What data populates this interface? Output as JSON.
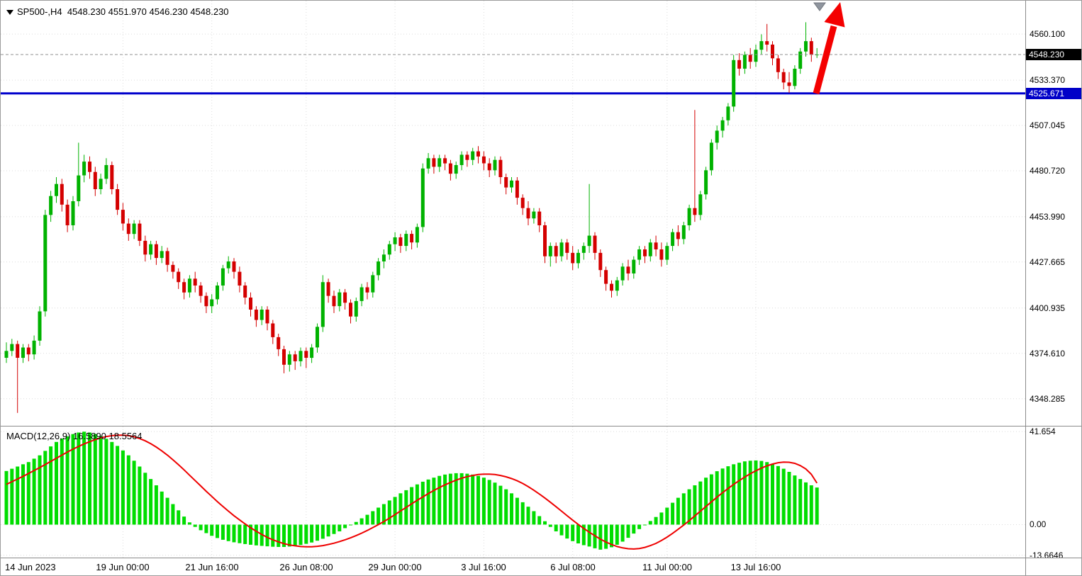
{
  "header": {
    "symbol_info": "SP500-,H4  4548.230 4551.970 4546.230 4548.230",
    "symbol": "SP500-",
    "timeframe": "H4"
  },
  "colors": {
    "up": "#00b200",
    "down": "#d40000",
    "macd_bar": "#00dd00",
    "signal": "#ee0000",
    "hline": "#0000cc",
    "arrow": "#f40000",
    "grid": "#dcdcdc",
    "price_line": "#909090",
    "marker": "#8f959e",
    "tag_black": "#000000",
    "tag_blue": "#0000c8"
  },
  "chart_data": {
    "type": "candlestick",
    "title": "SP500- H4 chart with MACD(12,26,9)",
    "price_ylim": [
      4332.5,
      4579.5
    ],
    "macd_ylim": [
      -14.75,
      43.9
    ],
    "last_candle": {
      "open": 4548.23,
      "high": 4551.97,
      "low": 4546.23,
      "close": 4548.23
    },
    "price_axis": {
      "ticks": [
        {
          "label": "4560.100",
          "value": 4560.1
        },
        {
          "label": "4533.370",
          "value": 4533.37
        },
        {
          "label": "4507.045",
          "value": 4507.045
        },
        {
          "label": "4480.720",
          "value": 4480.72
        },
        {
          "label": "4453.990",
          "value": 4453.99
        },
        {
          "label": "4427.665",
          "value": 4427.665
        },
        {
          "label": "4400.935",
          "value": 4400.935
        },
        {
          "label": "4374.610",
          "value": 4374.61
        },
        {
          "label": "4348.285",
          "value": 4348.285
        }
      ],
      "current": {
        "label": "4548.230",
        "value": 4548.23
      },
      "hline": {
        "label": "4525.671",
        "value": 4525.671
      }
    },
    "time_axis": [
      {
        "label": "14 Jun 2023",
        "index": 0,
        "grid": false
      },
      {
        "label": "19 Jun 00:00",
        "index": 21,
        "grid": true
      },
      {
        "label": "21 Jun 16:00",
        "index": 37,
        "grid": true
      },
      {
        "label": "26 Jun 08:00",
        "index": 54,
        "grid": true
      },
      {
        "label": "29 Jun 00:00",
        "index": 70,
        "grid": true
      },
      {
        "label": "3 Jul 16:00",
        "index": 86,
        "grid": true
      },
      {
        "label": "6 Jul 08:00",
        "index": 102,
        "grid": true
      },
      {
        "label": "11 Jul 00:00",
        "index": 119,
        "grid": true
      },
      {
        "label": "13 Jul 16:00",
        "index": 135,
        "grid": true
      }
    ],
    "candles": [
      [
        4372,
        4381,
        4369,
        4376
      ],
      [
        4376,
        4383,
        4373,
        4380
      ],
      [
        4380,
        4382,
        4340,
        4372
      ],
      [
        4372,
        4380,
        4369,
        4378
      ],
      [
        4378,
        4380,
        4370,
        4374
      ],
      [
        4374,
        4385,
        4371,
        4382
      ],
      [
        4382,
        4402,
        4379,
        4399
      ],
      [
        4399,
        4458,
        4396,
        4455
      ],
      [
        4455,
        4469,
        4451,
        4466
      ],
      [
        4466,
        4477,
        4462,
        4473
      ],
      [
        4473,
        4476,
        4457,
        4461
      ],
      [
        4461,
        4464,
        4445,
        4449
      ],
      [
        4449,
        4466,
        4446,
        4463
      ],
      [
        4463,
        4497,
        4460,
        4478
      ],
      [
        4478,
        4490,
        4474,
        4486
      ],
      [
        4486,
        4489,
        4476,
        4480
      ],
      [
        4480,
        4483,
        4466,
        4470
      ],
      [
        4470,
        4479,
        4467,
        4476
      ],
      [
        4476,
        4488,
        4473,
        4484
      ],
      [
        4484,
        4486,
        4467,
        4470
      ],
      [
        4470,
        4473,
        4455,
        4458
      ],
      [
        4458,
        4462,
        4446,
        4450
      ],
      [
        4450,
        4453,
        4440,
        4444
      ],
      [
        4444,
        4452,
        4441,
        4450
      ],
      [
        4450,
        4452,
        4437,
        4440
      ],
      [
        4440,
        4443,
        4428,
        4432
      ],
      [
        4432,
        4440,
        4429,
        4438
      ],
      [
        4438,
        4440,
        4426,
        4430
      ],
      [
        4430,
        4437,
        4427,
        4434
      ],
      [
        4434,
        4436,
        4422,
        4426
      ],
      [
        4426,
        4428,
        4418,
        4422
      ],
      [
        4422,
        4424,
        4412,
        4416
      ],
      [
        4416,
        4418,
        4406,
        4410
      ],
      [
        4410,
        4420,
        4407,
        4418
      ],
      [
        4418,
        4422,
        4410,
        4414
      ],
      [
        4414,
        4416,
        4404,
        4408
      ],
      [
        4408,
        4410,
        4398,
        4402
      ],
      [
        4402,
        4409,
        4398,
        4406
      ],
      [
        4406,
        4416,
        4403,
        4414
      ],
      [
        4414,
        4426,
        4411,
        4424
      ],
      [
        4424,
        4431,
        4421,
        4428
      ],
      [
        4428,
        4430,
        4418,
        4422
      ],
      [
        4422,
        4425,
        4410,
        4414
      ],
      [
        4414,
        4416,
        4403,
        4407
      ],
      [
        4407,
        4410,
        4396,
        4400
      ],
      [
        4400,
        4402,
        4390,
        4394
      ],
      [
        4394,
        4402,
        4391,
        4400
      ],
      [
        4400,
        4402,
        4388,
        4392
      ],
      [
        4392,
        4394,
        4380,
        4384
      ],
      [
        4384,
        4386,
        4373,
        4377
      ],
      [
        4377,
        4379,
        4363,
        4368
      ],
      [
        4368,
        4376,
        4364,
        4374
      ],
      [
        4374,
        4376,
        4365,
        4370
      ],
      [
        4370,
        4378,
        4367,
        4376
      ],
      [
        4376,
        4378,
        4366,
        4372
      ],
      [
        4372,
        4380,
        4369,
        4378
      ],
      [
        4378,
        4392,
        4375,
        4390
      ],
      [
        4390,
        4420,
        4387,
        4416
      ],
      [
        4416,
        4418,
        4404,
        4408
      ],
      [
        4408,
        4411,
        4398,
        4402
      ],
      [
        4402,
        4412,
        4399,
        4410
      ],
      [
        4410,
        4412,
        4400,
        4404
      ],
      [
        4404,
        4406,
        4392,
        4396
      ],
      [
        4396,
        4407,
        4393,
        4405
      ],
      [
        4405,
        4415,
        4402,
        4413
      ],
      [
        4413,
        4416,
        4406,
        4410
      ],
      [
        4410,
        4422,
        4407,
        4420
      ],
      [
        4420,
        4430,
        4417,
        4428
      ],
      [
        4428,
        4435,
        4424,
        4432
      ],
      [
        4432,
        4440,
        4429,
        4438
      ],
      [
        4438,
        4445,
        4434,
        4442
      ],
      [
        4442,
        4444,
        4433,
        4437
      ],
      [
        4437,
        4446,
        4434,
        4444
      ],
      [
        4444,
        4446,
        4435,
        4439
      ],
      [
        4439,
        4450,
        4436,
        4448
      ],
      [
        4448,
        4485,
        4445,
        4482
      ],
      [
        4482,
        4491,
        4479,
        4488
      ],
      [
        4488,
        4490,
        4479,
        4483
      ],
      [
        4483,
        4490,
        4480,
        4488
      ],
      [
        4488,
        4490,
        4481,
        4485
      ],
      [
        4485,
        4487,
        4475,
        4479
      ],
      [
        4479,
        4486,
        4476,
        4484
      ],
      [
        4484,
        4492,
        4481,
        4490
      ],
      [
        4490,
        4492,
        4483,
        4487
      ],
      [
        4487,
        4494,
        4484,
        4492
      ],
      [
        4492,
        4495,
        4485,
        4489
      ],
      [
        4489,
        4492,
        4481,
        4485
      ],
      [
        4485,
        4488,
        4477,
        4481
      ],
      [
        4481,
        4489,
        4478,
        4487
      ],
      [
        4487,
        4489,
        4473,
        4477
      ],
      [
        4477,
        4479,
        4467,
        4471
      ],
      [
        4471,
        4477,
        4468,
        4475
      ],
      [
        4475,
        4477,
        4461,
        4465
      ],
      [
        4465,
        4467,
        4455,
        4459
      ],
      [
        4459,
        4463,
        4449,
        4453
      ],
      [
        4453,
        4459,
        4450,
        4457
      ],
      [
        4457,
        4459,
        4445,
        4449
      ],
      [
        4449,
        4451,
        4427,
        4431
      ],
      [
        4431,
        4439,
        4425,
        4437
      ],
      [
        4437,
        4439,
        4427,
        4431
      ],
      [
        4431,
        4441,
        4428,
        4439
      ],
      [
        4439,
        4441,
        4429,
        4433
      ],
      [
        4433,
        4437,
        4423,
        4427
      ],
      [
        4427,
        4435,
        4424,
        4433
      ],
      [
        4433,
        4439,
        4429,
        4437
      ],
      [
        4437,
        4473,
        4433,
        4443
      ],
      [
        4443,
        4445,
        4429,
        4433
      ],
      [
        4433,
        4435,
        4419,
        4423
      ],
      [
        4423,
        4425,
        4411,
        4415
      ],
      [
        4415,
        4417,
        4407,
        4411
      ],
      [
        4411,
        4419,
        4408,
        4417
      ],
      [
        4417,
        4427,
        4414,
        4425
      ],
      [
        4425,
        4429,
        4417,
        4421
      ],
      [
        4421,
        4431,
        4418,
        4429
      ],
      [
        4429,
        4437,
        4426,
        4435
      ],
      [
        4435,
        4437,
        4427,
        4431
      ],
      [
        4431,
        4441,
        4428,
        4439
      ],
      [
        4439,
        4443,
        4431,
        4435
      ],
      [
        4435,
        4439,
        4425,
        4429
      ],
      [
        4429,
        4439,
        4426,
        4437
      ],
      [
        4437,
        4447,
        4434,
        4445
      ],
      [
        4445,
        4449,
        4437,
        4441
      ],
      [
        4441,
        4451,
        4438,
        4449
      ],
      [
        4449,
        4461,
        4446,
        4459
      ],
      [
        4459,
        4516,
        4451,
        4455
      ],
      [
        4455,
        4469,
        4452,
        4467
      ],
      [
        4467,
        4483,
        4464,
        4481
      ],
      [
        4481,
        4499,
        4478,
        4497
      ],
      [
        4497,
        4507,
        4493,
        4504
      ],
      [
        4504,
        4512,
        4500,
        4510
      ],
      [
        4510,
        4520,
        4507,
        4518
      ],
      [
        4518,
        4548,
        4515,
        4545
      ],
      [
        4545,
        4549,
        4536,
        4540
      ],
      [
        4540,
        4550,
        4537,
        4548
      ],
      [
        4548,
        4552,
        4540,
        4544
      ],
      [
        4544,
        4554,
        4541,
        4551
      ],
      [
        4551,
        4560,
        4548,
        4556
      ],
      [
        4556,
        4566,
        4550,
        4554
      ],
      [
        4554,
        4556,
        4542,
        4546
      ],
      [
        4546,
        4548,
        4534,
        4538
      ],
      [
        4538,
        4540,
        4528,
        4532
      ],
      [
        4532,
        4538,
        4526,
        4530
      ],
      [
        4530,
        4542,
        4528,
        4540
      ],
      [
        4540,
        4552,
        4537,
        4550
      ],
      [
        4550,
        4567,
        4547,
        4556
      ],
      [
        4556,
        4558,
        4544,
        4548
      ],
      [
        4548.23,
        4551.97,
        4546.23,
        4548.23
      ]
    ],
    "indicator": {
      "name": "MACD",
      "params": "12,26,9",
      "label": "MACD(12,26,9) 16.5890 18.5564",
      "macd_value": 16.589,
      "signal_value": 18.5564,
      "ticks": [
        {
          "label": "41.654",
          "value": 41.654
        },
        {
          "label": "0.00",
          "value": 0
        },
        {
          "label": "-13.6646",
          "value": -13.6646
        }
      ],
      "histogram": [
        24,
        25,
        26,
        27,
        28,
        29.5,
        31,
        33,
        35,
        37,
        38.5,
        39.5,
        40.5,
        41.2,
        41.6,
        41.2,
        40.5,
        39.6,
        38.4,
        37,
        35.2,
        33.2,
        31,
        28.6,
        26,
        23.2,
        20.4,
        17.6,
        14.8,
        12,
        9.2,
        6.4,
        3.6,
        1,
        -1,
        -2.5,
        -3.8,
        -5,
        -6,
        -6.8,
        -7.4,
        -7.9,
        -8.3,
        -8.7,
        -9,
        -9.3,
        -9.5,
        -9.7,
        -9.9,
        -10,
        -10,
        -9.8,
        -9.5,
        -9.1,
        -8.6,
        -8,
        -7.2,
        -6.3,
        -5.3,
        -4.2,
        -3,
        -1.6,
        -0.2,
        1.2,
        2.8,
        4.4,
        6,
        7.6,
        9.2,
        10.8,
        12.4,
        14,
        15.4,
        16.8,
        18,
        19.2,
        20.2,
        21,
        21.8,
        22.4,
        22.8,
        23,
        23,
        22.8,
        22.4,
        21.8,
        21,
        20,
        18.8,
        17.4,
        15.8,
        14,
        12,
        10,
        8,
        6,
        3.8,
        1.5,
        -1,
        -3,
        -4.8,
        -6.2,
        -7.4,
        -8.4,
        -9.2,
        -9.8,
        -10.6,
        -11.2,
        -10.8,
        -10.1,
        -9,
        -7.6,
        -5.9,
        -4,
        -2,
        -0.2,
        1.6,
        3.4,
        5.4,
        7.6,
        9.8,
        12,
        14,
        15.8,
        17.6,
        19.3,
        21,
        22.5,
        23.9,
        25.1,
        26.1,
        27,
        27.7,
        28.3,
        28.6,
        28.7,
        28.5,
        28,
        27.2,
        26.2,
        25,
        23.6,
        22,
        20.4,
        18.9,
        17.6,
        16.59
      ],
      "signal": [
        18,
        19.2,
        20.4,
        21.6,
        22.9,
        24.2,
        25.5,
        26.9,
        28.3,
        29.7,
        31.1,
        32.5,
        33.8,
        35,
        36.1,
        37.1,
        38,
        38.8,
        39.4,
        39.8,
        40,
        40,
        39.8,
        39.3,
        38.5,
        37.5,
        36.2,
        34.7,
        33,
        31.1,
        29,
        26.8,
        24.5,
        22.1,
        19.7,
        17.3,
        14.9,
        12.6,
        10.3,
        8.1,
        6,
        4,
        2.1,
        0.3,
        -1.4,
        -3,
        -4.4,
        -5.7,
        -6.8,
        -7.7,
        -8.5,
        -9.1,
        -9.5,
        -9.8,
        -9.9,
        -9.9,
        -9.7,
        -9.4,
        -8.9,
        -8.3,
        -7.6,
        -6.8,
        -5.9,
        -4.9,
        -3.8,
        -2.6,
        -1.3,
        0,
        1.4,
        2.9,
        4.5,
        6.1,
        7.7,
        9.3,
        10.9,
        12.4,
        13.9,
        15.3,
        16.6,
        17.8,
        18.9,
        19.9,
        20.8,
        21.5,
        22,
        22.4,
        22.6,
        22.6,
        22.4,
        22,
        21.4,
        20.6,
        19.6,
        18.4,
        17,
        15.4,
        13.7,
        11.9,
        10,
        8,
        6,
        4,
        2,
        0.1,
        -1.7,
        -3.4,
        -5,
        -6.5,
        -7.8,
        -8.9,
        -9.8,
        -10.4,
        -10.8,
        -10.9,
        -10.7,
        -10.2,
        -9.4,
        -8.4,
        -7.1,
        -5.6,
        -3.9,
        -2.1,
        -0.2,
        1.8,
        3.9,
        6,
        8.1,
        10.2,
        12.3,
        14.3,
        16.2,
        18,
        19.7,
        21.3,
        22.8,
        24.1,
        25.3,
        26.3,
        27.1,
        27.7,
        28,
        27.9,
        27.4,
        26.4,
        24.9,
        22.5,
        18.56
      ]
    },
    "annotations": {
      "support_line": {
        "value": 4525.671,
        "color": "#0000cc"
      },
      "trend_arrow": {
        "direction": "up",
        "color": "#f40000"
      },
      "marker_triangle": {
        "color": "#8f959e"
      }
    }
  }
}
